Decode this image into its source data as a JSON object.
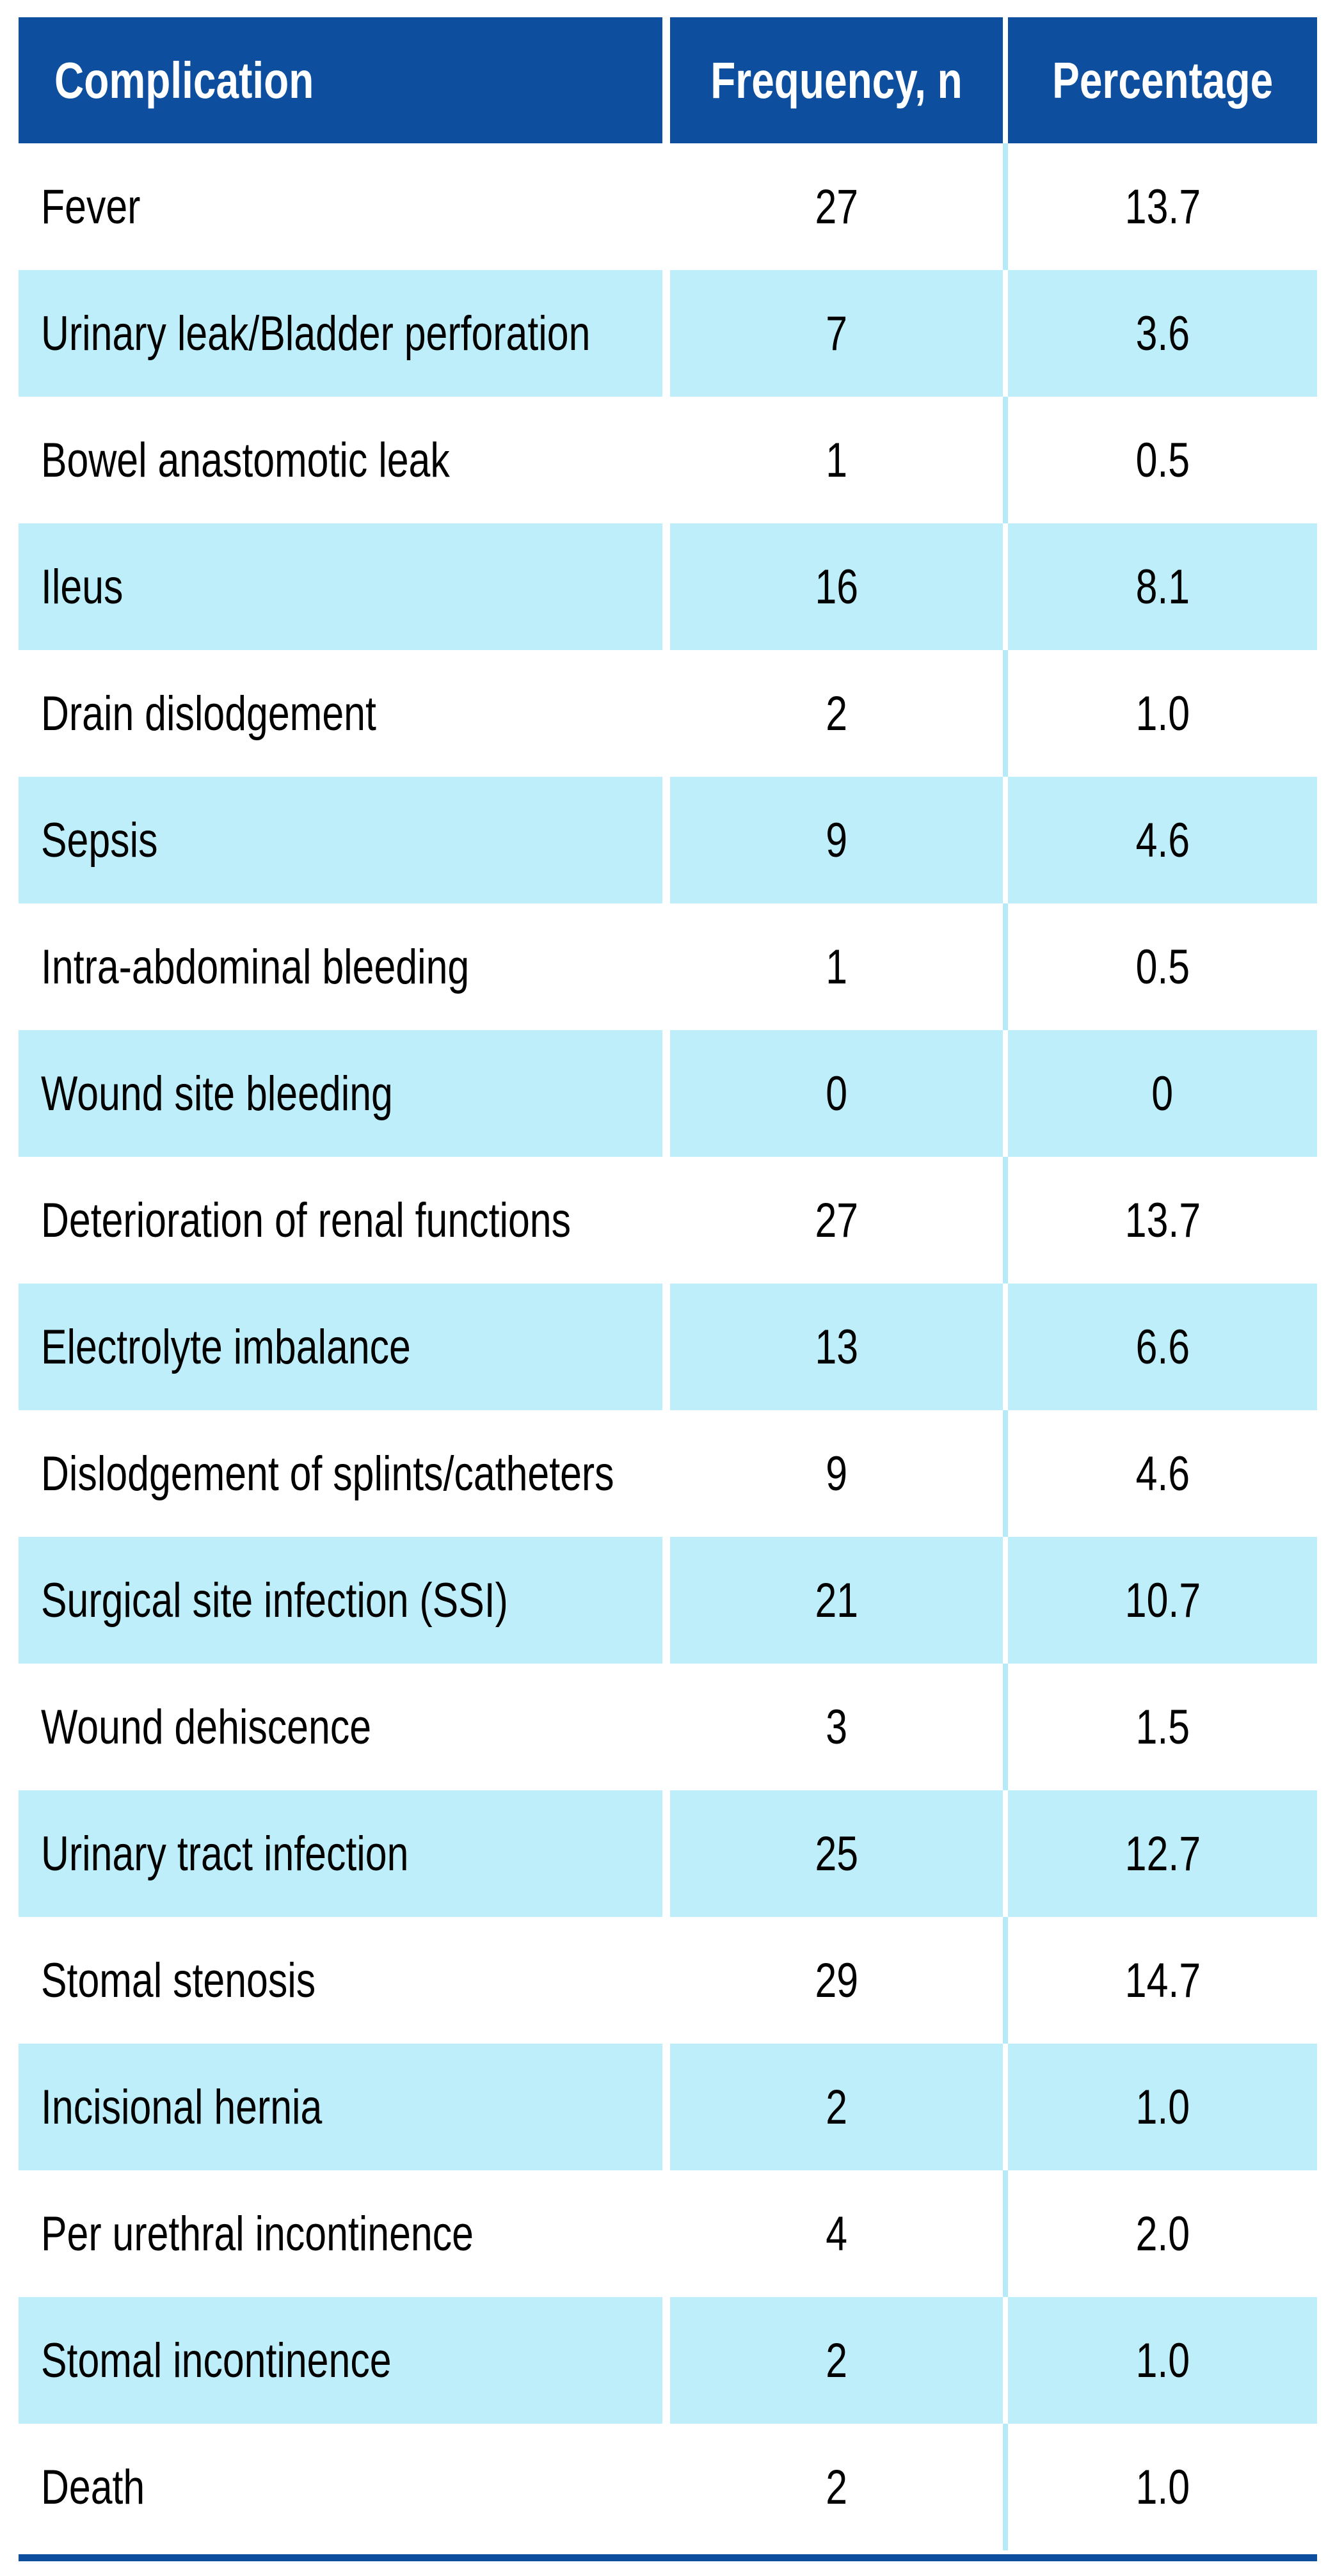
{
  "figure": {
    "kind": "complications-table"
  },
  "table": {
    "columns": [
      "Complication",
      "Frequency, n",
      "Percentage"
    ],
    "rows": [
      {
        "complication": "Fever",
        "frequency": "27",
        "percentage": "13.7"
      },
      {
        "complication": "Urinary leak/Bladder perforation",
        "frequency": "7",
        "percentage": "3.6"
      },
      {
        "complication": "Bowel anastomotic leak",
        "frequency": "1",
        "percentage": "0.5"
      },
      {
        "complication": "Ileus",
        "frequency": "16",
        "percentage": "8.1"
      },
      {
        "complication": "Drain dislodgement",
        "frequency": "2",
        "percentage": "1.0"
      },
      {
        "complication": "Sepsis",
        "frequency": "9",
        "percentage": "4.6"
      },
      {
        "complication": "Intra-abdominal bleeding",
        "frequency": "1",
        "percentage": "0.5"
      },
      {
        "complication": "Wound site bleeding",
        "frequency": "0",
        "percentage": "0"
      },
      {
        "complication": "Deterioration of renal functions",
        "frequency": "27",
        "percentage": "13.7"
      },
      {
        "complication": "Electrolyte imbalance",
        "frequency": "13",
        "percentage": "6.6"
      },
      {
        "complication": "Dislodgement of splints/catheters",
        "frequency": "9",
        "percentage": "4.6"
      },
      {
        "complication": "Surgical site infection (SSI)",
        "frequency": "21",
        "percentage": "10.7"
      },
      {
        "complication": "Wound dehiscence",
        "frequency": "3",
        "percentage": "1.5"
      },
      {
        "complication": "Urinary tract infection",
        "frequency": "25",
        "percentage": "12.7"
      },
      {
        "complication": "Stomal stenosis",
        "frequency": "29",
        "percentage": "14.7"
      },
      {
        "complication": "Incisional hernia",
        "frequency": "2",
        "percentage": "1.0"
      },
      {
        "complication": "Per urethral incontinence",
        "frequency": "4",
        "percentage": "2.0"
      },
      {
        "complication": "Stomal incontinence",
        "frequency": "2",
        "percentage": "1.0"
      },
      {
        "complication": "Death",
        "frequency": "2",
        "percentage": "1.0"
      }
    ]
  },
  "colors": {
    "header_bg": "#0d4f9e",
    "header_text": "#ffffff",
    "row_bg": "#ffffff",
    "row_alt_bg": "#bfeefb",
    "divider": "#b5ebf9",
    "bottom_rule": "#0d4f9e",
    "body_text": "#000000"
  }
}
